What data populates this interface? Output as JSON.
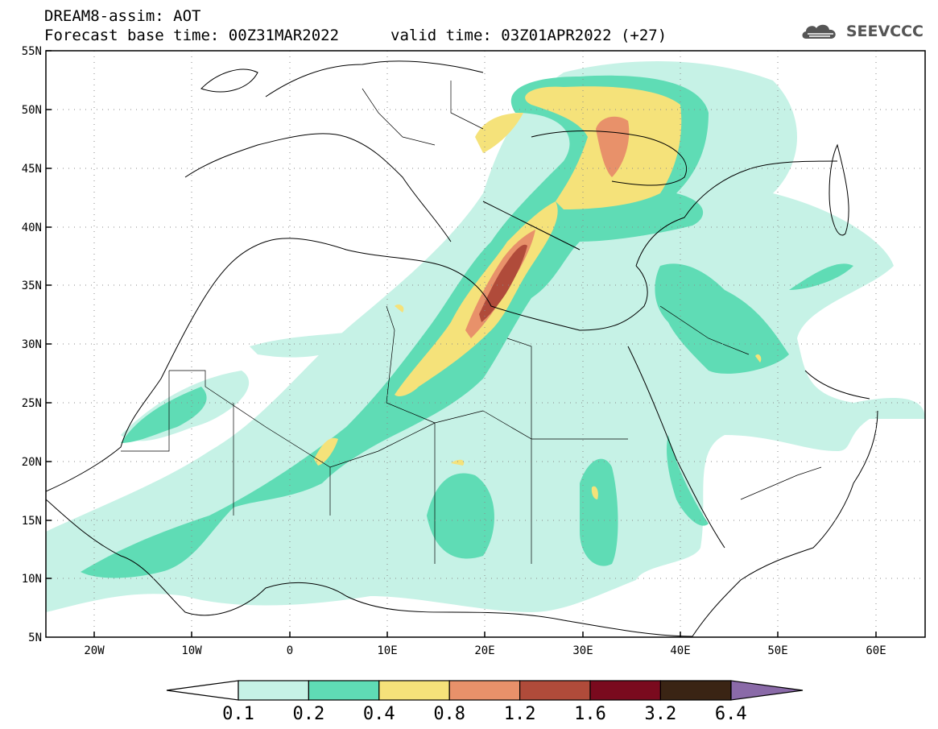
{
  "header": {
    "title": "DREAM8-assim: AOT",
    "base_time": "Forecast base time: 00Z31MAR2022",
    "valid_time": "valid time: 03Z01APR2022 (+27)"
  },
  "logo": {
    "text": "SEEVCCC",
    "icon": "cloud-icon"
  },
  "axes": {
    "lat_labels": [
      "55N",
      "50N",
      "45N",
      "40N",
      "35N",
      "30N",
      "25N",
      "20N",
      "15N",
      "10N",
      "5N"
    ],
    "lon_labels": [
      "20W",
      "10W",
      "0",
      "10E",
      "20E",
      "30E",
      "40E",
      "50E",
      "60E"
    ],
    "lat_range": [
      5,
      55
    ],
    "lon_range": [
      -25,
      65
    ]
  },
  "colorbar": {
    "labels": [
      "0.1",
      "0.2",
      "0.4",
      "0.8",
      "1.2",
      "1.6",
      "3.2",
      "6.4"
    ],
    "colors": [
      "#c6f2e6",
      "#5fdcb5",
      "#f5e27a",
      "#e8916a",
      "#b04b3a",
      "#7a0a1e",
      "#3a2414"
    ],
    "under_color": "#ffffff",
    "over_color": "#8a6aa8"
  },
  "chart_data": {
    "type": "heatmap",
    "variable": "AOT",
    "levels": [
      0.1,
      0.2,
      0.4,
      0.8,
      1.2,
      1.6,
      3.2,
      6.4
    ]
  }
}
